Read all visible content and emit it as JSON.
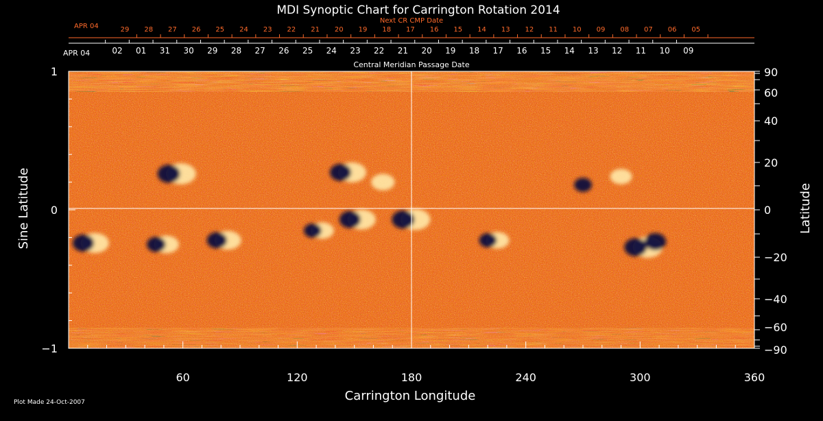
{
  "chart_data": {
    "type": "heatmap",
    "title": "MDI Synoptic Chart for Carrington Rotation 2014",
    "xlabel": "Carrington Longitude",
    "ylabel_left": "Sine Latitude",
    "ylabel_right": "Latitude",
    "xlim": [
      0,
      360
    ],
    "ylim": [
      -1,
      1
    ],
    "x_ticks": [
      "60",
      "120",
      "180",
      "240",
      "300",
      "360"
    ],
    "y_ticks_left": [
      "1",
      "0",
      "−1"
    ],
    "y_ticks_right": [
      "90",
      "60",
      "40",
      "20",
      "0",
      "−20",
      "−40",
      "−60",
      "−90"
    ],
    "top_axis_label": "Central Meridian Passage Date",
    "top_axis_first_label": "APR 04",
    "top_axis_days": [
      "02",
      "01",
      "31",
      "30",
      "29",
      "28",
      "27",
      "26",
      "25",
      "24",
      "23",
      "22",
      "21",
      "20",
      "19",
      "18",
      "17",
      "16",
      "15",
      "14",
      "13",
      "12",
      "11",
      "10",
      "09"
    ],
    "next_axis_label": "Next CR CMP Date",
    "next_axis_first_label": "APR 04",
    "next_axis_days": [
      "29",
      "28",
      "27",
      "26",
      "25",
      "24",
      "23",
      "22",
      "21",
      "20",
      "19",
      "18",
      "17",
      "16",
      "15",
      "14",
      "13",
      "12",
      "11",
      "10",
      "09",
      "08",
      "07",
      "06",
      "05"
    ],
    "colormap": [
      "#0a0a3a",
      "#c83a00",
      "#ff6a1a",
      "#ffd070",
      "#ffffff"
    ],
    "features": [
      {
        "lon": 55,
        "sinlat": 0.26,
        "polarity": "mixed",
        "strength": 1.0
      },
      {
        "lon": 145,
        "sinlat": 0.27,
        "polarity": "mixed",
        "strength": 0.9
      },
      {
        "lon": 165,
        "sinlat": 0.2,
        "polarity": "positive",
        "strength": 0.6
      },
      {
        "lon": 10,
        "sinlat": -0.24,
        "polarity": "mixed",
        "strength": 0.9
      },
      {
        "lon": 48,
        "sinlat": -0.25,
        "polarity": "mixed",
        "strength": 0.7
      },
      {
        "lon": 80,
        "sinlat": -0.22,
        "polarity": "mixed",
        "strength": 0.8
      },
      {
        "lon": 130,
        "sinlat": -0.15,
        "polarity": "mixed",
        "strength": 0.6
      },
      {
        "lon": 150,
        "sinlat": -0.07,
        "polarity": "mixed",
        "strength": 0.9
      },
      {
        "lon": 178,
        "sinlat": -0.07,
        "polarity": "mixed",
        "strength": 1.0
      },
      {
        "lon": 222,
        "sinlat": -0.22,
        "polarity": "mixed",
        "strength": 0.6
      },
      {
        "lon": 270,
        "sinlat": 0.18,
        "polarity": "negative",
        "strength": 0.6
      },
      {
        "lon": 300,
        "sinlat": -0.27,
        "polarity": "mixed",
        "strength": 1.0
      },
      {
        "lon": 308,
        "sinlat": -0.23,
        "polarity": "negative",
        "strength": 0.9
      },
      {
        "lon": 290,
        "sinlat": 0.24,
        "polarity": "positive",
        "strength": 0.5
      }
    ]
  },
  "footer": {
    "plot_made": "Plot Made 24-Oct-2007"
  }
}
